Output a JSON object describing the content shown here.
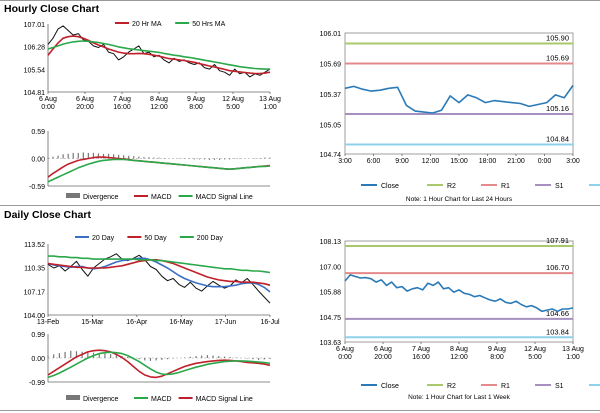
{
  "sections": {
    "hourly_title": "Hourly Close Chart",
    "daily_title": "Daily Close Chart"
  },
  "colors": {
    "close": "#2a7ab8",
    "r2": "#a9c86a",
    "r1": "#e58a8a",
    "s1": "#a690c0",
    "s2": "#8fd0ec",
    "ma_short": "#c0202a",
    "ma_long": "#2aa84a",
    "ma_mid": "#c0202a",
    "ma_20day": "#3a6fc4",
    "price": "#111111",
    "hist": "#777777"
  },
  "chart_data": [
    {
      "id": "hourly_price",
      "type": "line",
      "legend": [
        "20 Hr MA",
        "50 Hrs MA"
      ],
      "x_ticks": [
        "6 Aug 0:00",
        "6 Aug 20:00",
        "7 Aug 16:00",
        "8 Aug 12:00",
        "9 Aug 8:00",
        "12 Aug 5:00",
        "13 Aug 1:00"
      ],
      "y_ticks": [
        107.01,
        106.28,
        105.54,
        104.81
      ],
      "ylim": [
        104.81,
        107.01
      ],
      "series": [
        {
          "name": "Price",
          "role": "price",
          "values": [
            106.35,
            106.55,
            106.85,
            106.95,
            106.8,
            106.65,
            106.7,
            106.5,
            106.45,
            106.3,
            106.25,
            106.35,
            106.1,
            106.05,
            105.85,
            105.95,
            106.1,
            106.2,
            106.3,
            106.05,
            106.1,
            105.95,
            106.0,
            105.85,
            105.75,
            105.9,
            105.8,
            105.85,
            105.75,
            105.7,
            105.75,
            105.6,
            105.55,
            105.7,
            105.5,
            105.45,
            105.35,
            105.55,
            105.4,
            105.45,
            105.3,
            105.4,
            105.35,
            105.45,
            105.55
          ]
        },
        {
          "name": "20 Hr MA",
          "role": "ma_short",
          "values": [
            106.0,
            106.2,
            106.4,
            106.55,
            106.6,
            106.62,
            106.6,
            106.55,
            106.48,
            106.4,
            106.33,
            106.27,
            106.2,
            106.15,
            106.1,
            106.07,
            106.05,
            106.05,
            106.06,
            106.05,
            106.03,
            106.0,
            105.97,
            105.93,
            105.89,
            105.87,
            105.85,
            105.83,
            105.8,
            105.77,
            105.73,
            105.69,
            105.65,
            105.62,
            105.58,
            105.54,
            105.5,
            105.48,
            105.46,
            105.44,
            105.42,
            105.41,
            105.41,
            105.42,
            105.45
          ]
        },
        {
          "name": "50 Hrs MA",
          "role": "ma_long",
          "values": [
            106.2,
            106.25,
            106.3,
            106.36,
            106.4,
            106.43,
            106.45,
            106.46,
            106.45,
            106.43,
            106.41,
            106.38,
            106.35,
            106.31,
            106.27,
            106.24,
            106.21,
            106.19,
            106.17,
            106.15,
            106.13,
            106.11,
            106.09,
            106.06,
            106.03,
            106.0,
            105.98,
            105.95,
            105.93,
            105.9,
            105.87,
            105.84,
            105.81,
            105.78,
            105.75,
            105.72,
            105.69,
            105.66,
            105.63,
            105.61,
            105.59,
            105.57,
            105.56,
            105.55,
            105.55
          ]
        }
      ]
    },
    {
      "id": "hourly_macd",
      "type": "line",
      "legend": [
        "Divergence",
        "MACD",
        "MACD Signal Line"
      ],
      "y_ticks": [
        0.59,
        0.0,
        -0.59
      ],
      "ylim": [
        -0.59,
        0.59
      ],
      "series": [
        {
          "name": "Divergence",
          "role": "hist",
          "values": [
            0.02,
            0.04,
            0.06,
            0.09,
            0.1,
            0.12,
            0.12,
            0.13,
            0.12,
            0.12,
            0.11,
            0.1,
            0.1,
            0.09,
            0.08,
            0.07,
            0.06,
            0.05,
            0.04,
            0.03,
            0.03,
            0.02,
            0.02,
            0.01,
            0.0,
            0.0,
            -0.01,
            -0.01,
            -0.01,
            -0.02,
            -0.02,
            -0.02,
            -0.03,
            -0.03,
            -0.03,
            -0.02,
            -0.02,
            -0.01,
            -0.01,
            0.0,
            0.0,
            0.01,
            0.01,
            0.02,
            0.02
          ]
        },
        {
          "name": "MACD",
          "role": "ma_short",
          "values": [
            -0.4,
            -0.32,
            -0.25,
            -0.18,
            -0.12,
            -0.08,
            -0.04,
            -0.02,
            0.0,
            0.02,
            0.03,
            0.03,
            0.02,
            0.01,
            0.0,
            -0.01,
            -0.02,
            -0.04,
            -0.05,
            -0.06,
            -0.07,
            -0.08,
            -0.09,
            -0.1,
            -0.11,
            -0.12,
            -0.13,
            -0.14,
            -0.15,
            -0.16,
            -0.17,
            -0.18,
            -0.19,
            -0.2,
            -0.21,
            -0.22,
            -0.23,
            -0.22,
            -0.21,
            -0.2,
            -0.19,
            -0.18,
            -0.17,
            -0.16,
            -0.15
          ]
        },
        {
          "name": "MACD Signal Line",
          "role": "ma_long",
          "values": [
            -0.5,
            -0.45,
            -0.4,
            -0.35,
            -0.3,
            -0.25,
            -0.2,
            -0.16,
            -0.12,
            -0.09,
            -0.06,
            -0.04,
            -0.03,
            -0.02,
            -0.02,
            -0.02,
            -0.03,
            -0.04,
            -0.05,
            -0.06,
            -0.07,
            -0.08,
            -0.09,
            -0.1,
            -0.11,
            -0.12,
            -0.13,
            -0.14,
            -0.15,
            -0.16,
            -0.17,
            -0.18,
            -0.19,
            -0.2,
            -0.21,
            -0.22,
            -0.23,
            -0.22,
            -0.21,
            -0.2,
            -0.19,
            -0.18,
            -0.17,
            -0.17,
            -0.16
          ]
        }
      ]
    },
    {
      "id": "hourly_levels",
      "type": "line",
      "x_ticks": [
        "3:00",
        "6:00",
        "9:00",
        "12:00",
        "15:00",
        "18:00",
        "21:00",
        "0:00",
        "3:00"
      ],
      "y_ticks": [
        106.01,
        105.69,
        105.37,
        105.05,
        104.74
      ],
      "ylim": [
        104.74,
        106.01
      ],
      "levels": {
        "R2": 105.9,
        "R1": 105.69,
        "S1": 105.16,
        "S2": 104.84
      },
      "level_labels": [
        "105.90",
        "105.69",
        "105.16",
        "104.84"
      ],
      "legend": [
        "Close",
        "R2",
        "R1",
        "S1",
        "S2"
      ],
      "note": "Note: 1 Hour Chart for Last 24 Hours",
      "series": [
        {
          "name": "Close",
          "values": [
            105.43,
            105.45,
            105.42,
            105.4,
            105.41,
            105.43,
            105.44,
            105.25,
            105.19,
            105.18,
            105.17,
            105.2,
            105.35,
            105.28,
            105.36,
            105.33,
            105.28,
            105.3,
            105.29,
            105.28,
            105.27,
            105.24,
            105.26,
            105.28,
            105.36,
            105.33,
            105.46
          ]
        }
      ]
    },
    {
      "id": "daily_price",
      "type": "line",
      "legend": [
        "20 Day",
        "50 Day",
        "200 Day"
      ],
      "x_ticks": [
        "13-Feb",
        "15-Mar",
        "16-Apr",
        "16-May",
        "17-Jun",
        "16-Jul"
      ],
      "y_ticks": [
        113.52,
        110.35,
        107.17,
        104.0
      ],
      "ylim": [
        104.0,
        113.52
      ],
      "series": [
        {
          "name": "Price",
          "role": "price",
          "values": [
            110.8,
            110.3,
            110.6,
            109.9,
            110.5,
            111.2,
            110.1,
            109.2,
            110.3,
            110.9,
            111.5,
            111.8,
            112.2,
            111.5,
            111.3,
            111.6,
            112.0,
            111.4,
            110.5,
            110.1,
            109.2,
            108.6,
            108.9,
            108.1,
            107.7,
            108.4,
            107.6,
            107.2,
            107.9,
            108.5,
            108.0,
            107.6,
            107.9,
            108.7,
            108.3,
            108.9,
            108.1,
            107.2,
            106.4,
            105.6
          ]
        },
        {
          "name": "20 Day",
          "role": "ma_20day",
          "values": [
            110.9,
            110.7,
            110.6,
            110.5,
            110.4,
            110.5,
            110.5,
            110.3,
            110.2,
            110.3,
            110.5,
            110.8,
            111.1,
            111.3,
            111.4,
            111.5,
            111.6,
            111.6,
            111.4,
            111.1,
            110.7,
            110.3,
            109.8,
            109.3,
            108.9,
            108.6,
            108.3,
            108.1,
            107.9,
            107.8,
            107.8,
            107.8,
            107.9,
            108.0,
            108.2,
            108.3,
            108.3,
            108.1,
            107.7,
            107.1
          ]
        },
        {
          "name": "50 Day",
          "role": "ma_mid",
          "values": [
            110.9,
            110.8,
            110.7,
            110.6,
            110.5,
            110.4,
            110.4,
            110.3,
            110.3,
            110.3,
            110.3,
            110.4,
            110.5,
            110.6,
            110.8,
            111.0,
            111.2,
            111.3,
            111.4,
            111.4,
            111.3,
            111.1,
            110.9,
            110.6,
            110.3,
            110.0,
            109.7,
            109.4,
            109.1,
            108.9,
            108.7,
            108.6,
            108.5,
            108.5,
            108.4,
            108.4,
            108.4,
            108.3,
            108.2,
            108.0
          ]
        },
        {
          "name": "200 Day",
          "role": "ma_long",
          "values": [
            111.9,
            111.9,
            111.8,
            111.8,
            111.7,
            111.7,
            111.6,
            111.6,
            111.5,
            111.5,
            111.5,
            111.5,
            111.5,
            111.5,
            111.5,
            111.5,
            111.4,
            111.4,
            111.4,
            111.3,
            111.3,
            111.2,
            111.1,
            111.0,
            110.9,
            110.8,
            110.7,
            110.6,
            110.5,
            110.4,
            110.3,
            110.2,
            110.2,
            110.1,
            110.0,
            110.0,
            109.9,
            109.9,
            109.8,
            109.7
          ]
        }
      ]
    },
    {
      "id": "daily_macd",
      "type": "line",
      "legend": [
        "Divergence",
        "MACD",
        "MACD Signal Line"
      ],
      "y_ticks": [
        0.99,
        0.0,
        -0.99
      ],
      "ylim": [
        -0.99,
        0.99
      ],
      "series": [
        {
          "name": "Divergence",
          "role": "hist",
          "values": [
            0.1,
            0.15,
            0.2,
            0.25,
            0.3,
            0.28,
            0.26,
            0.24,
            0.22,
            0.2,
            0.18,
            0.16,
            0.12,
            0.08,
            0.04,
            0.0,
            -0.05,
            -0.1,
            -0.12,
            -0.1,
            -0.08,
            -0.05,
            -0.02,
            0.0,
            0.02,
            0.05,
            0.08,
            0.1,
            0.12,
            0.1,
            0.08,
            0.06,
            0.04,
            0.02,
            0.0,
            -0.02,
            -0.05,
            -0.08,
            -0.06,
            -0.04
          ]
        },
        {
          "name": "MACD",
          "role": "ma_short",
          "values": [
            -0.7,
            -0.55,
            -0.4,
            -0.25,
            -0.1,
            0.05,
            0.15,
            0.25,
            0.3,
            0.32,
            0.3,
            0.25,
            0.15,
            0.02,
            -0.15,
            -0.35,
            -0.55,
            -0.7,
            -0.78,
            -0.8,
            -0.75,
            -0.65,
            -0.55,
            -0.45,
            -0.35,
            -0.28,
            -0.22,
            -0.18,
            -0.15,
            -0.12,
            -0.1,
            -0.09,
            -0.1,
            -0.12,
            -0.15,
            -0.18,
            -0.2,
            -0.22,
            -0.25,
            -0.3
          ]
        },
        {
          "name": "MACD Signal Line",
          "role": "ma_long",
          "values": [
            -0.8,
            -0.72,
            -0.62,
            -0.5,
            -0.38,
            -0.25,
            -0.12,
            0.0,
            0.1,
            0.18,
            0.22,
            0.24,
            0.22,
            0.18,
            0.1,
            -0.02,
            -0.15,
            -0.3,
            -0.45,
            -0.58,
            -0.66,
            -0.68,
            -0.65,
            -0.6,
            -0.52,
            -0.45,
            -0.38,
            -0.32,
            -0.26,
            -0.22,
            -0.18,
            -0.15,
            -0.13,
            -0.12,
            -0.12,
            -0.13,
            -0.15,
            -0.17,
            -0.19,
            -0.22
          ]
        }
      ]
    },
    {
      "id": "daily_levels",
      "type": "line",
      "x_ticks": [
        "6 Aug 0:00",
        "6 Aug 20:00",
        "7 Aug 16:00",
        "8 Aug 12:00",
        "9 Aug 8:00",
        "12 Aug 5:00",
        "13 Aug 1:00"
      ],
      "y_ticks": [
        108.13,
        107.0,
        105.88,
        104.75,
        103.63
      ],
      "ylim": [
        103.63,
        108.13
      ],
      "levels": {
        "R2": 107.91,
        "R1": 106.7,
        "S1": 104.66,
        "S2": 103.84
      },
      "level_labels": [
        "107.91",
        "106.70",
        "104.66",
        "103.84"
      ],
      "legend": [
        "Close",
        "R2",
        "R1",
        "S1",
        "S2"
      ],
      "note": "Note: 1 Hour Chart for Last 1 Week",
      "series": [
        {
          "name": "Close",
          "values": [
            106.35,
            106.62,
            106.55,
            106.48,
            106.5,
            106.45,
            106.3,
            106.4,
            106.15,
            106.3,
            106.05,
            106.1,
            105.9,
            106.0,
            106.05,
            105.95,
            106.25,
            106.15,
            106.3,
            106.0,
            106.05,
            105.85,
            105.95,
            105.8,
            105.75,
            105.65,
            105.7,
            105.6,
            105.5,
            105.45,
            105.55,
            105.4,
            105.35,
            105.45,
            105.3,
            105.2,
            105.25,
            105.15,
            105.0,
            105.05,
            105.1,
            105.0,
            105.1,
            105.1,
            105.15
          ]
        }
      ]
    }
  ]
}
